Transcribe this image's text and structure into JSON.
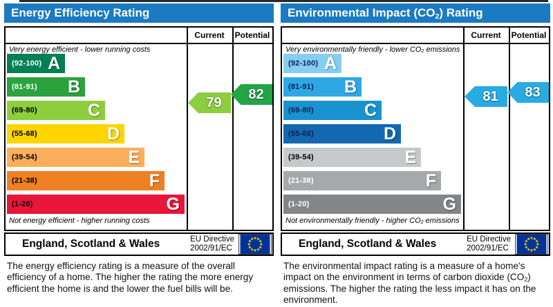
{
  "chart_data": [
    {
      "type": "bar",
      "title": "Energy Efficiency Rating",
      "categories": [
        "A",
        "B",
        "C",
        "D",
        "E",
        "F",
        "G"
      ],
      "band_ranges": [
        "92-100",
        "81-91",
        "69-80",
        "55-68",
        "39-54",
        "21-38",
        "1-20"
      ],
      "band_colors": [
        "#008054",
        "#2ba23c",
        "#8dce3f",
        "#ffd500",
        "#fbaf5d",
        "#ef8023",
        "#e9153b"
      ],
      "series": [
        {
          "name": "Current",
          "values": [
            79
          ],
          "band": "C",
          "color": "#8dce3f"
        },
        {
          "name": "Potential",
          "values": [
            82
          ],
          "band": "B",
          "color": "#21a546"
        }
      ],
      "scale": [
        1,
        100
      ],
      "caption_top": "Very energy efficient - lower running costs",
      "caption_bottom": "Not energy efficient - higher running costs"
    },
    {
      "type": "bar",
      "title": "Environmental Impact (CO2) Rating",
      "categories": [
        "A",
        "B",
        "C",
        "D",
        "E",
        "F",
        "G"
      ],
      "band_ranges": [
        "92-100",
        "81-91",
        "69-80",
        "55-68",
        "39-54",
        "21-38",
        "1-20"
      ],
      "band_colors": [
        "#86cdf1",
        "#30a7e5",
        "#1a92d0",
        "#1368b0",
        "#c8c9ca",
        "#a6a8aa",
        "#838587"
      ],
      "series": [
        {
          "name": "Current",
          "values": [
            81
          ],
          "band": "B",
          "color": "#29abe2"
        },
        {
          "name": "Potential",
          "values": [
            83
          ],
          "band": "B",
          "color": "#29abe2"
        }
      ],
      "scale": [
        1,
        100
      ],
      "caption_top": "Very environmentally friendly - lower CO2 emissions",
      "caption_bottom": "Not environmentally friendly - higher CO2 emissions"
    }
  ],
  "panels": [
    {
      "title": "Energy Efficiency Rating",
      "columns": {
        "current": "Current",
        "potential": "Potential"
      },
      "caption_top": "Very energy efficient - lower running costs",
      "caption_bottom": "Not energy efficient - higher running costs",
      "bands": [
        {
          "letter": "A",
          "range_label": "(92-100)",
          "min": 92,
          "max": 100,
          "color": "#008054",
          "label_color": "#ffffff"
        },
        {
          "letter": "B",
          "range_label": "(81-91)",
          "min": 81,
          "max": 91,
          "color": "#2ba23c",
          "label_color": "#ffffff"
        },
        {
          "letter": "C",
          "range_label": "(69-80)",
          "min": 69,
          "max": 80,
          "color": "#8dce3f",
          "label_color": "#000000"
        },
        {
          "letter": "D",
          "range_label": "(55-68)",
          "min": 55,
          "max": 68,
          "color": "#ffd500",
          "label_color": "#000000"
        },
        {
          "letter": "E",
          "range_label": "(39-54)",
          "min": 39,
          "max": 54,
          "color": "#fbaf5d",
          "label_color": "#000000"
        },
        {
          "letter": "F",
          "range_label": "(21-38)",
          "min": 21,
          "max": 38,
          "color": "#ef8023",
          "label_color": "#000000"
        },
        {
          "letter": "G",
          "range_label": "(1-20)",
          "min": 1,
          "max": 20,
          "color": "#e9153b",
          "label_color": "#000000"
        }
      ],
      "current": {
        "value": "79",
        "color": "#8dce3f"
      },
      "potential": {
        "value": "82",
        "color": "#21a546"
      },
      "footer": {
        "region": "England, Scotland & Wales",
        "directive_line1": "EU Directive",
        "directive_line2": "2002/91/EC"
      },
      "description": "The energy efficiency rating is a measure of the overall efficiency of a home. The higher the rating the more energy efficient the home is and the lower the fuel bills will be."
    },
    {
      "title": "Environmental Impact (CO2) Rating",
      "columns": {
        "current": "Current",
        "potential": "Potential"
      },
      "caption_top": "Very environmentally friendly - lower CO2 emissions",
      "caption_bottom": "Not environmentally friendly - higher CO2 emissions",
      "bands": [
        {
          "letter": "A",
          "range_label": "(92-100)",
          "min": 92,
          "max": 100,
          "color": "#86cdf1",
          "label_color": "#0d2050"
        },
        {
          "letter": "B",
          "range_label": "(81-91)",
          "min": 81,
          "max": 91,
          "color": "#30a7e5",
          "label_color": "#0d2050"
        },
        {
          "letter": "C",
          "range_label": "(69-80)",
          "min": 69,
          "max": 80,
          "color": "#1a92d0",
          "label_color": "#0d2050"
        },
        {
          "letter": "D",
          "range_label": "(55-68)",
          "min": 55,
          "max": 68,
          "color": "#1368b0",
          "label_color": "#0d2050"
        },
        {
          "letter": "E",
          "range_label": "(39-54)",
          "min": 39,
          "max": 54,
          "color": "#c8c9ca",
          "label_color": "#000000"
        },
        {
          "letter": "F",
          "range_label": "(21-38)",
          "min": 21,
          "max": 38,
          "color": "#a6a8aa",
          "label_color": "#ffffff"
        },
        {
          "letter": "G",
          "range_label": "(1-20)",
          "min": 1,
          "max": 20,
          "color": "#838587",
          "label_color": "#ffffff"
        }
      ],
      "current": {
        "value": "81",
        "color": "#29abe2"
      },
      "potential": {
        "value": "83",
        "color": "#29abe2"
      },
      "footer": {
        "region": "England, Scotland & Wales",
        "directive_line1": "EU Directive",
        "directive_line2": "2002/91/EC"
      },
      "description": "The environmental impact rating is a measure of a home's impact on the environment in terms of carbon dioxide (CO2) emissions. The higher the rating the less impact it has on the environment."
    }
  ],
  "flag_colors": {
    "background": "#003399",
    "stars": "#ffcc00"
  }
}
